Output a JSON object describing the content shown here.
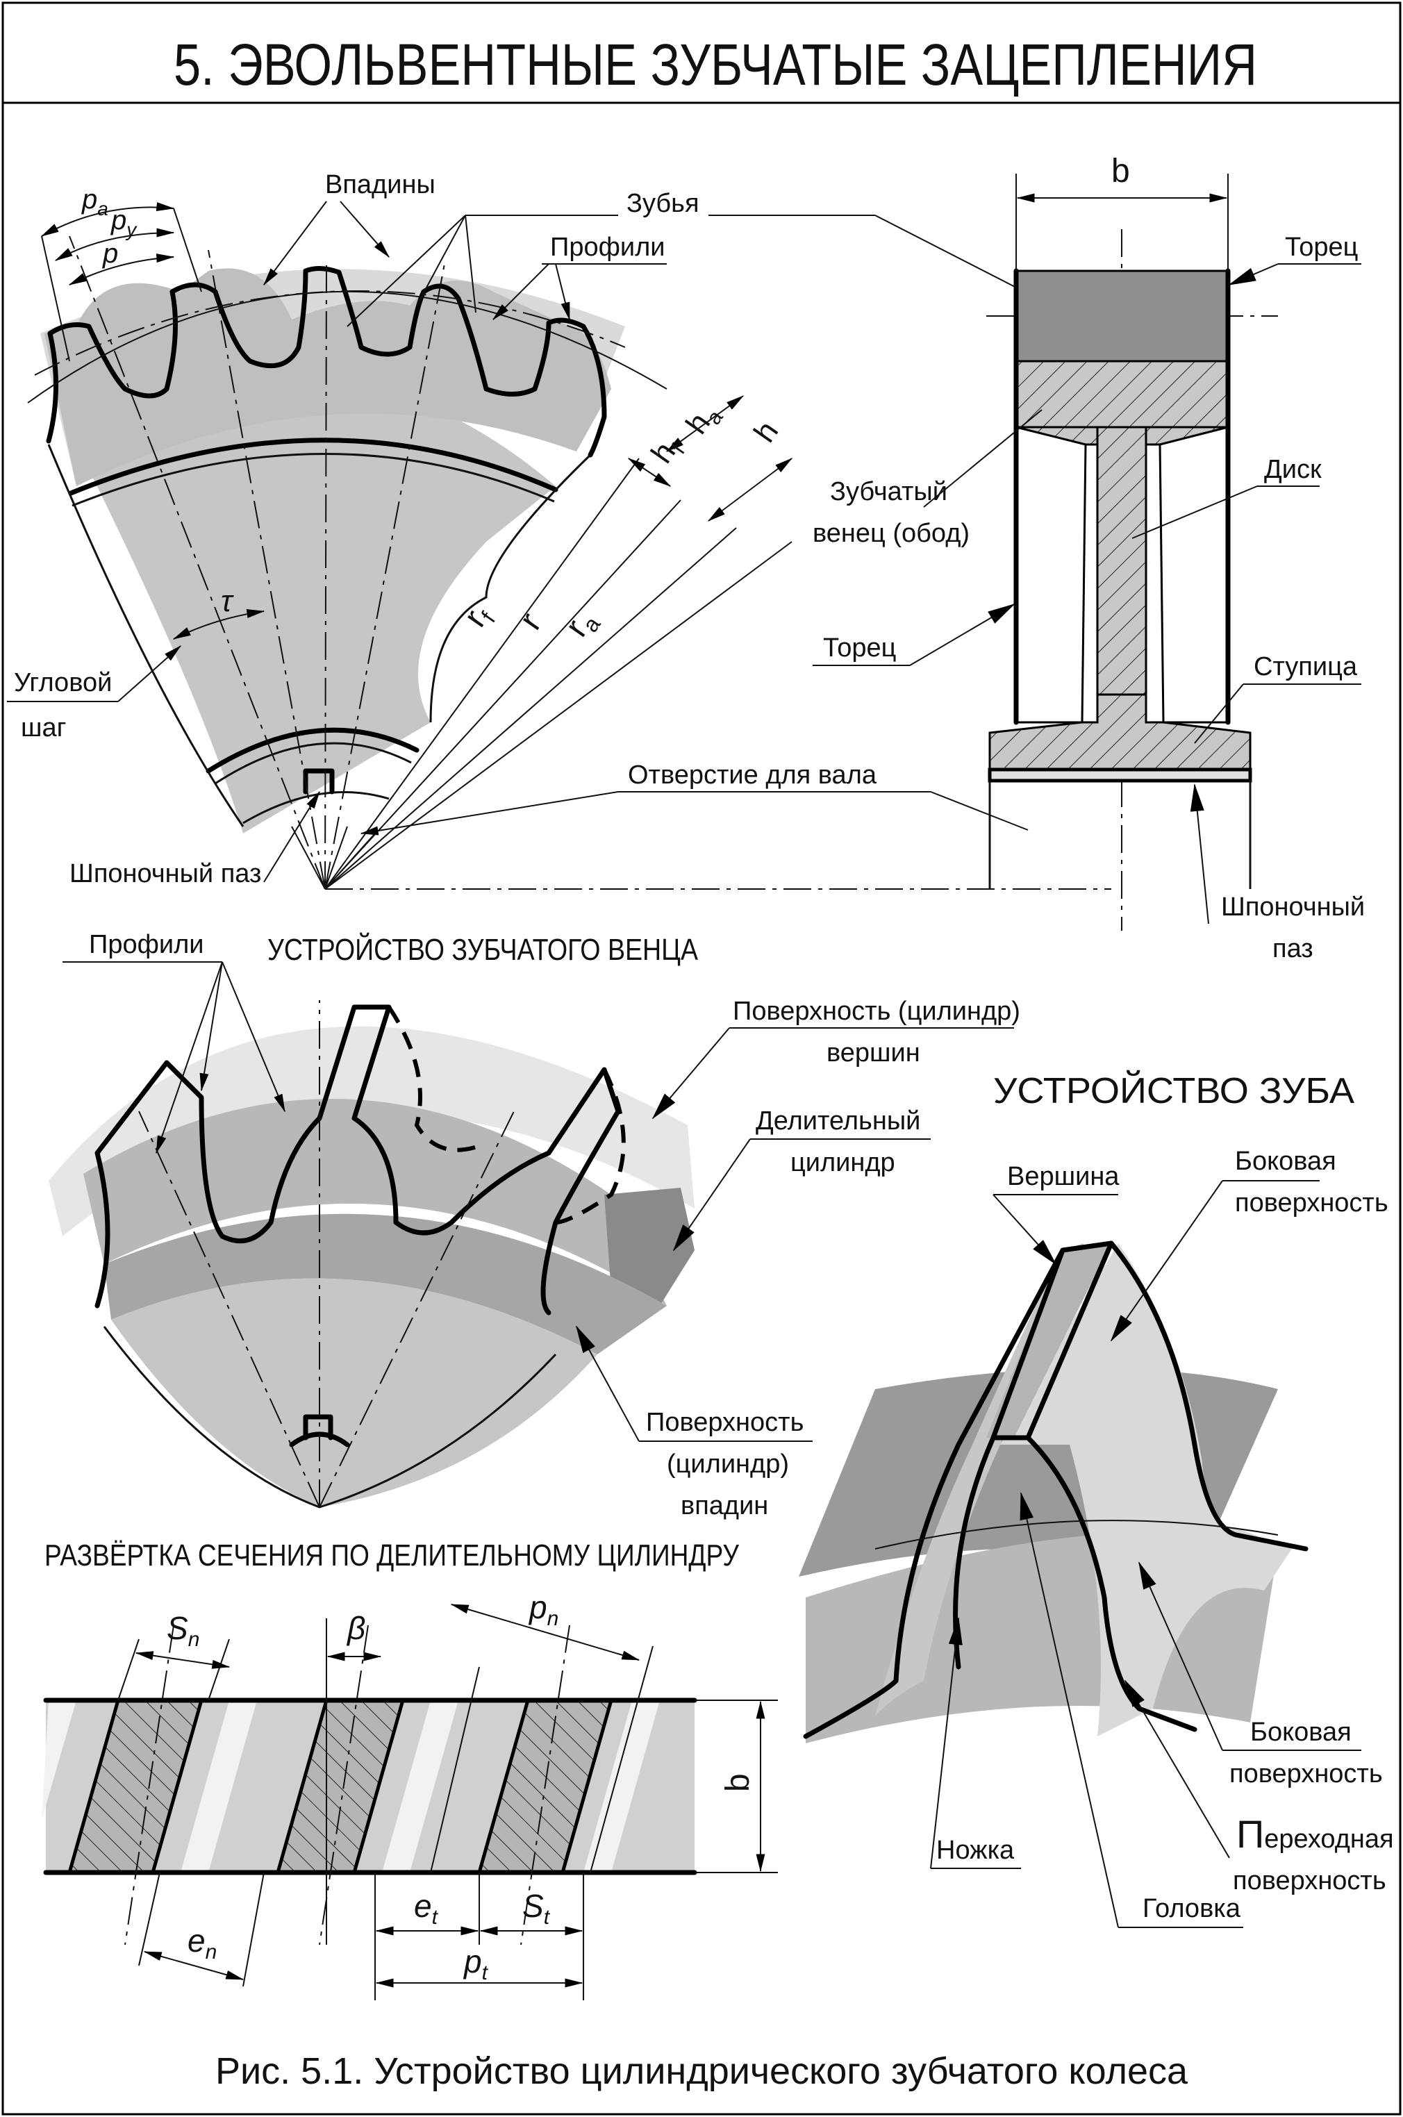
{
  "title": "5. ЭВОЛЬВЕНТНЫЕ ЗУБЧАТЫЕ ЗАЦЕПЛЕНИЯ",
  "caption": "Рис. 5.1. Устройство цилиндрического зубчатого колеса",
  "sections": {
    "rim": "УСТРОЙСТВО ЗУБЧАТОГО ВЕНЦА",
    "tooth": "УСТРОЙСТВО ЗУБА",
    "development": "РАЗВЁРТКА СЕЧЕНИЯ ПО ДЕЛИТЕЛЬНОМУ ЦИЛИНДРУ"
  },
  "gear_sector": {
    "vpadiny": "Впадины",
    "zubya": "Зубья",
    "profili": "Профили",
    "pa": "p",
    "pa_sub": "a",
    "py": "p",
    "py_sub": "y",
    "p": "p",
    "hf": "h",
    "hf_sub": "f",
    "ha": "h",
    "ha_sub": "a",
    "h": "h",
    "rf": "r",
    "rf_sub": "f",
    "r": "r",
    "ra": "r",
    "ra_sub": "a",
    "tau": "τ",
    "ugl_line1": "Угловой",
    "ugl_line2": "шаг",
    "shp_paz": "Шпоночный паз",
    "otverstie": "Отверстие для вала"
  },
  "section_view": {
    "b": "b",
    "torec_top": "Торец",
    "venec_line1": "Зубчатый",
    "venec_line2": "венец (обод)",
    "disk": "Диск",
    "torec_left": "Торец",
    "stupica": "Ступица",
    "shp_line1": "Шпоночный",
    "shp_line2": "паз"
  },
  "rim_view": {
    "profili": "Профили",
    "pov_vershin_1": "Поверхность (цилиндр)",
    "pov_vershin_2": "вершин",
    "delit_1": "Делительный",
    "delit_2": "цилиндр",
    "pov_vpadin_1": "Поверхность",
    "pov_vpadin_2": "(цилиндр)",
    "pov_vpadin_3": "впадин"
  },
  "tooth_view": {
    "vershina": "Вершина",
    "bok_top_1": "Боковая",
    "bok_top_2": "поверхность",
    "bok_bot_1": "Боковая",
    "bok_bot_2": "поверхность",
    "perehod_1": "Переходная",
    "perehod_2": "поверхность",
    "nozhka": "Ножка",
    "golovka": "Головка"
  },
  "development_view": {
    "sn": "S",
    "sn_sub": "n",
    "beta": "β",
    "pn": "p",
    "pn_sub": "n",
    "b": "b",
    "et": "e",
    "et_sub": "t",
    "st": "S",
    "st_sub": "t",
    "pt": "p",
    "pt_sub": "t",
    "en": "e",
    "en_sub": "n"
  },
  "colors": {
    "rim_gray": "#d4d4d4",
    "body_gray": "#c4c4c4",
    "dark_gray": "#8a8a8a",
    "mid_gray": "#a6a6a6",
    "light_gray": "#e6e6e6",
    "line": "#000000"
  }
}
